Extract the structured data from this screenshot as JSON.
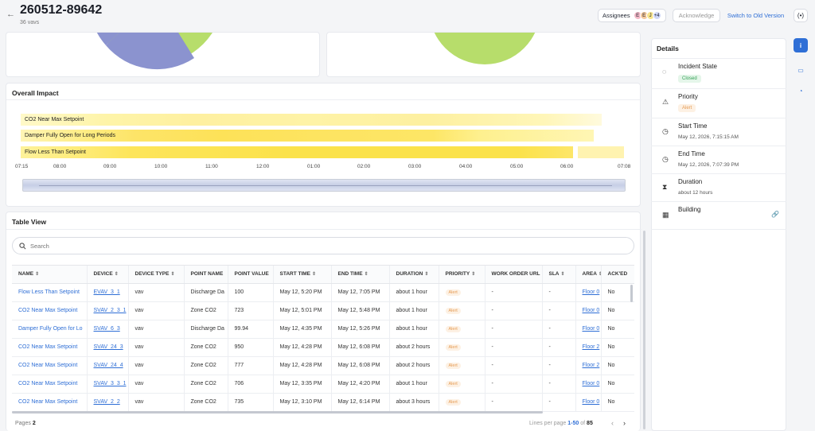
{
  "header": {
    "title": "260512-89642",
    "subtitle": "36 vavs",
    "assignees_label": "Assignees",
    "avatars": [
      {
        "initial": "E",
        "bg": "#f2b8c6"
      },
      {
        "initial": "E",
        "bg": "#f4c89a"
      },
      {
        "initial": "J",
        "bg": "#f6e38a"
      },
      {
        "initial": "+4",
        "bg": "#cfd7f7"
      }
    ],
    "acknowledge_label": "Acknowledge",
    "switch_label": "Switch to Old Version",
    "radio_icon": "(•)"
  },
  "impact": {
    "title": "Overall Impact",
    "rows": [
      "CO2 Near Max Setpoint",
      "Damper Fully Open for Long Periods",
      "Flow Less Than Setpoint"
    ],
    "ticks": [
      "07:15",
      "08:00",
      "09:00",
      "10:00",
      "11:00",
      "12:00",
      "01:00",
      "02:00",
      "03:00",
      "04:00",
      "05:00",
      "06:00",
      "07:08"
    ]
  },
  "table": {
    "title": "Table View",
    "search_placeholder": "Search",
    "columns": [
      "NAME",
      "DEVICE",
      "DEVICE TYPE",
      "POINT NAME",
      "POINT VALUE",
      "START TIME",
      "END TIME",
      "DURATION",
      "PRIORITY",
      "WORK ORDER URL",
      "SLA",
      "AREA",
      "ACK'ED"
    ],
    "rows": [
      [
        "Flow Less Than Setpoint",
        "EVAV_3_1",
        "vav",
        "Discharge Da",
        "100",
        "May 12, 5:20 PM",
        "May 12, 7:05 PM",
        "about 1 hour",
        "Alert",
        "-",
        "-",
        "Floor 0",
        "No"
      ],
      [
        "CO2 Near Max Setpoint",
        "SVAV_2_3_1",
        "vav",
        "Zone CO2",
        "723",
        "May 12, 5:01 PM",
        "May 12, 5:48 PM",
        "about 1 hour",
        "Alert",
        "-",
        "-",
        "Floor 0",
        "No"
      ],
      [
        "Damper Fully Open for Lo",
        "SVAV_6_3",
        "vav",
        "Discharge Da",
        "99.94",
        "May 12, 4:35 PM",
        "May 12, 5:26 PM",
        "about 1 hour",
        "Alert",
        "-",
        "-",
        "Floor 0",
        "No"
      ],
      [
        "CO2 Near Max Setpoint",
        "SVAV_24_3",
        "vav",
        "Zone CO2",
        "950",
        "May 12, 4:28 PM",
        "May 12, 6:08 PM",
        "about 2 hours",
        "Alert",
        "-",
        "-",
        "Floor 2",
        "No"
      ],
      [
        "CO2 Near Max Setpoint",
        "SVAV_24_4",
        "vav",
        "Zone CO2",
        "777",
        "May 12, 4:28 PM",
        "May 12, 6:08 PM",
        "about 2 hours",
        "Alert",
        "-",
        "-",
        "Floor 2",
        "No"
      ],
      [
        "CO2 Near Max Setpoint",
        "SVAV_3_3_1",
        "vav",
        "Zone CO2",
        "706",
        "May 12, 3:35 PM",
        "May 12, 4:20 PM",
        "about 1 hour",
        "Alert",
        "-",
        "-",
        "Floor 0",
        "No"
      ],
      [
        "CO2 Near Max Setpoint",
        "SVAV_2_2",
        "vav",
        "Zone CO2",
        "735",
        "May 12, 3:10 PM",
        "May 12, 6:14 PM",
        "about 3 hours",
        "Alert",
        "-",
        "-",
        "Floor 0",
        "No"
      ]
    ],
    "pages_label": "Pages",
    "pages_value": "2",
    "lines_label": "Lines per page",
    "lines_range": "1-50",
    "lines_of": "of",
    "lines_total": "85"
  },
  "details": {
    "title": "Details",
    "items": [
      {
        "label": "Incident State",
        "value": "Closed"
      },
      {
        "label": "Priority",
        "value": "Alert"
      },
      {
        "label": "Start Time",
        "value": "May 12, 2026, 7:15:15 AM"
      },
      {
        "label": "End Time",
        "value": "May 12, 2026, 7:07:39 PM"
      },
      {
        "label": "Duration",
        "value": "about 12 hours"
      },
      {
        "label": "Building",
        "value": ""
      }
    ]
  },
  "colors": {
    "accent": "#2f6fd6",
    "pie_blue": "#8b93cf",
    "pie_green": "#b7dd6b",
    "heat": "#fbe24a"
  }
}
